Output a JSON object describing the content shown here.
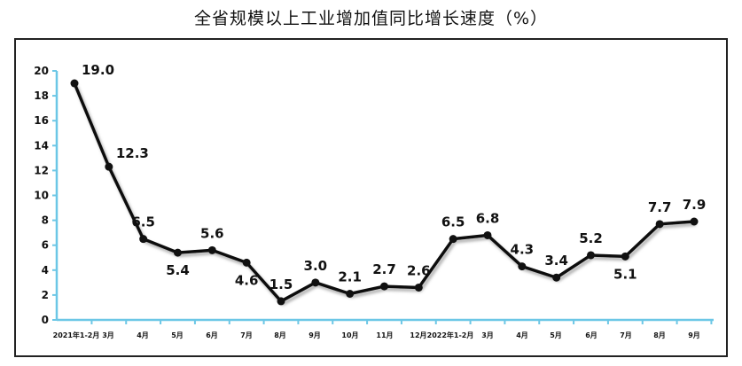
{
  "chart_data": {
    "type": "line",
    "title": "全省规模以上工业增加值同比增长速度（%）",
    "categories": [
      "2021年1-2月",
      "3月",
      "4月",
      "5月",
      "6月",
      "7月",
      "8月",
      "9月",
      "10月",
      "11月",
      "12月",
      "2022年1-2月",
      "3月",
      "4月",
      "5月",
      "6月",
      "7月",
      "8月",
      "9月"
    ],
    "values": [
      19.0,
      12.3,
      6.5,
      5.4,
      5.6,
      4.6,
      1.5,
      3.0,
      2.1,
      2.7,
      2.6,
      6.5,
      6.8,
      4.3,
      3.4,
      5.2,
      5.1,
      7.7,
      7.9
    ],
    "data_labels": [
      "19.0",
      "12.3",
      "6.5",
      "5.4",
      "5.6",
      "4.6",
      "1.5",
      "3.0",
      "2.1",
      "2.7",
      "2.6",
      "6.5",
      "6.8",
      "4.3",
      "3.4",
      "5.2",
      "5.1",
      "7.7",
      "7.9"
    ],
    "yticks": [
      "0",
      "2",
      "4",
      "6",
      "8",
      "10",
      "12",
      "14",
      "16",
      "18",
      "20"
    ],
    "ylim": [
      0,
      20
    ],
    "xlabel": "",
    "ylabel": "",
    "grid": false,
    "legend": "none",
    "colors": {
      "line": "#111111",
      "axis": "#6cc7e6",
      "marker": "#111111"
    }
  }
}
